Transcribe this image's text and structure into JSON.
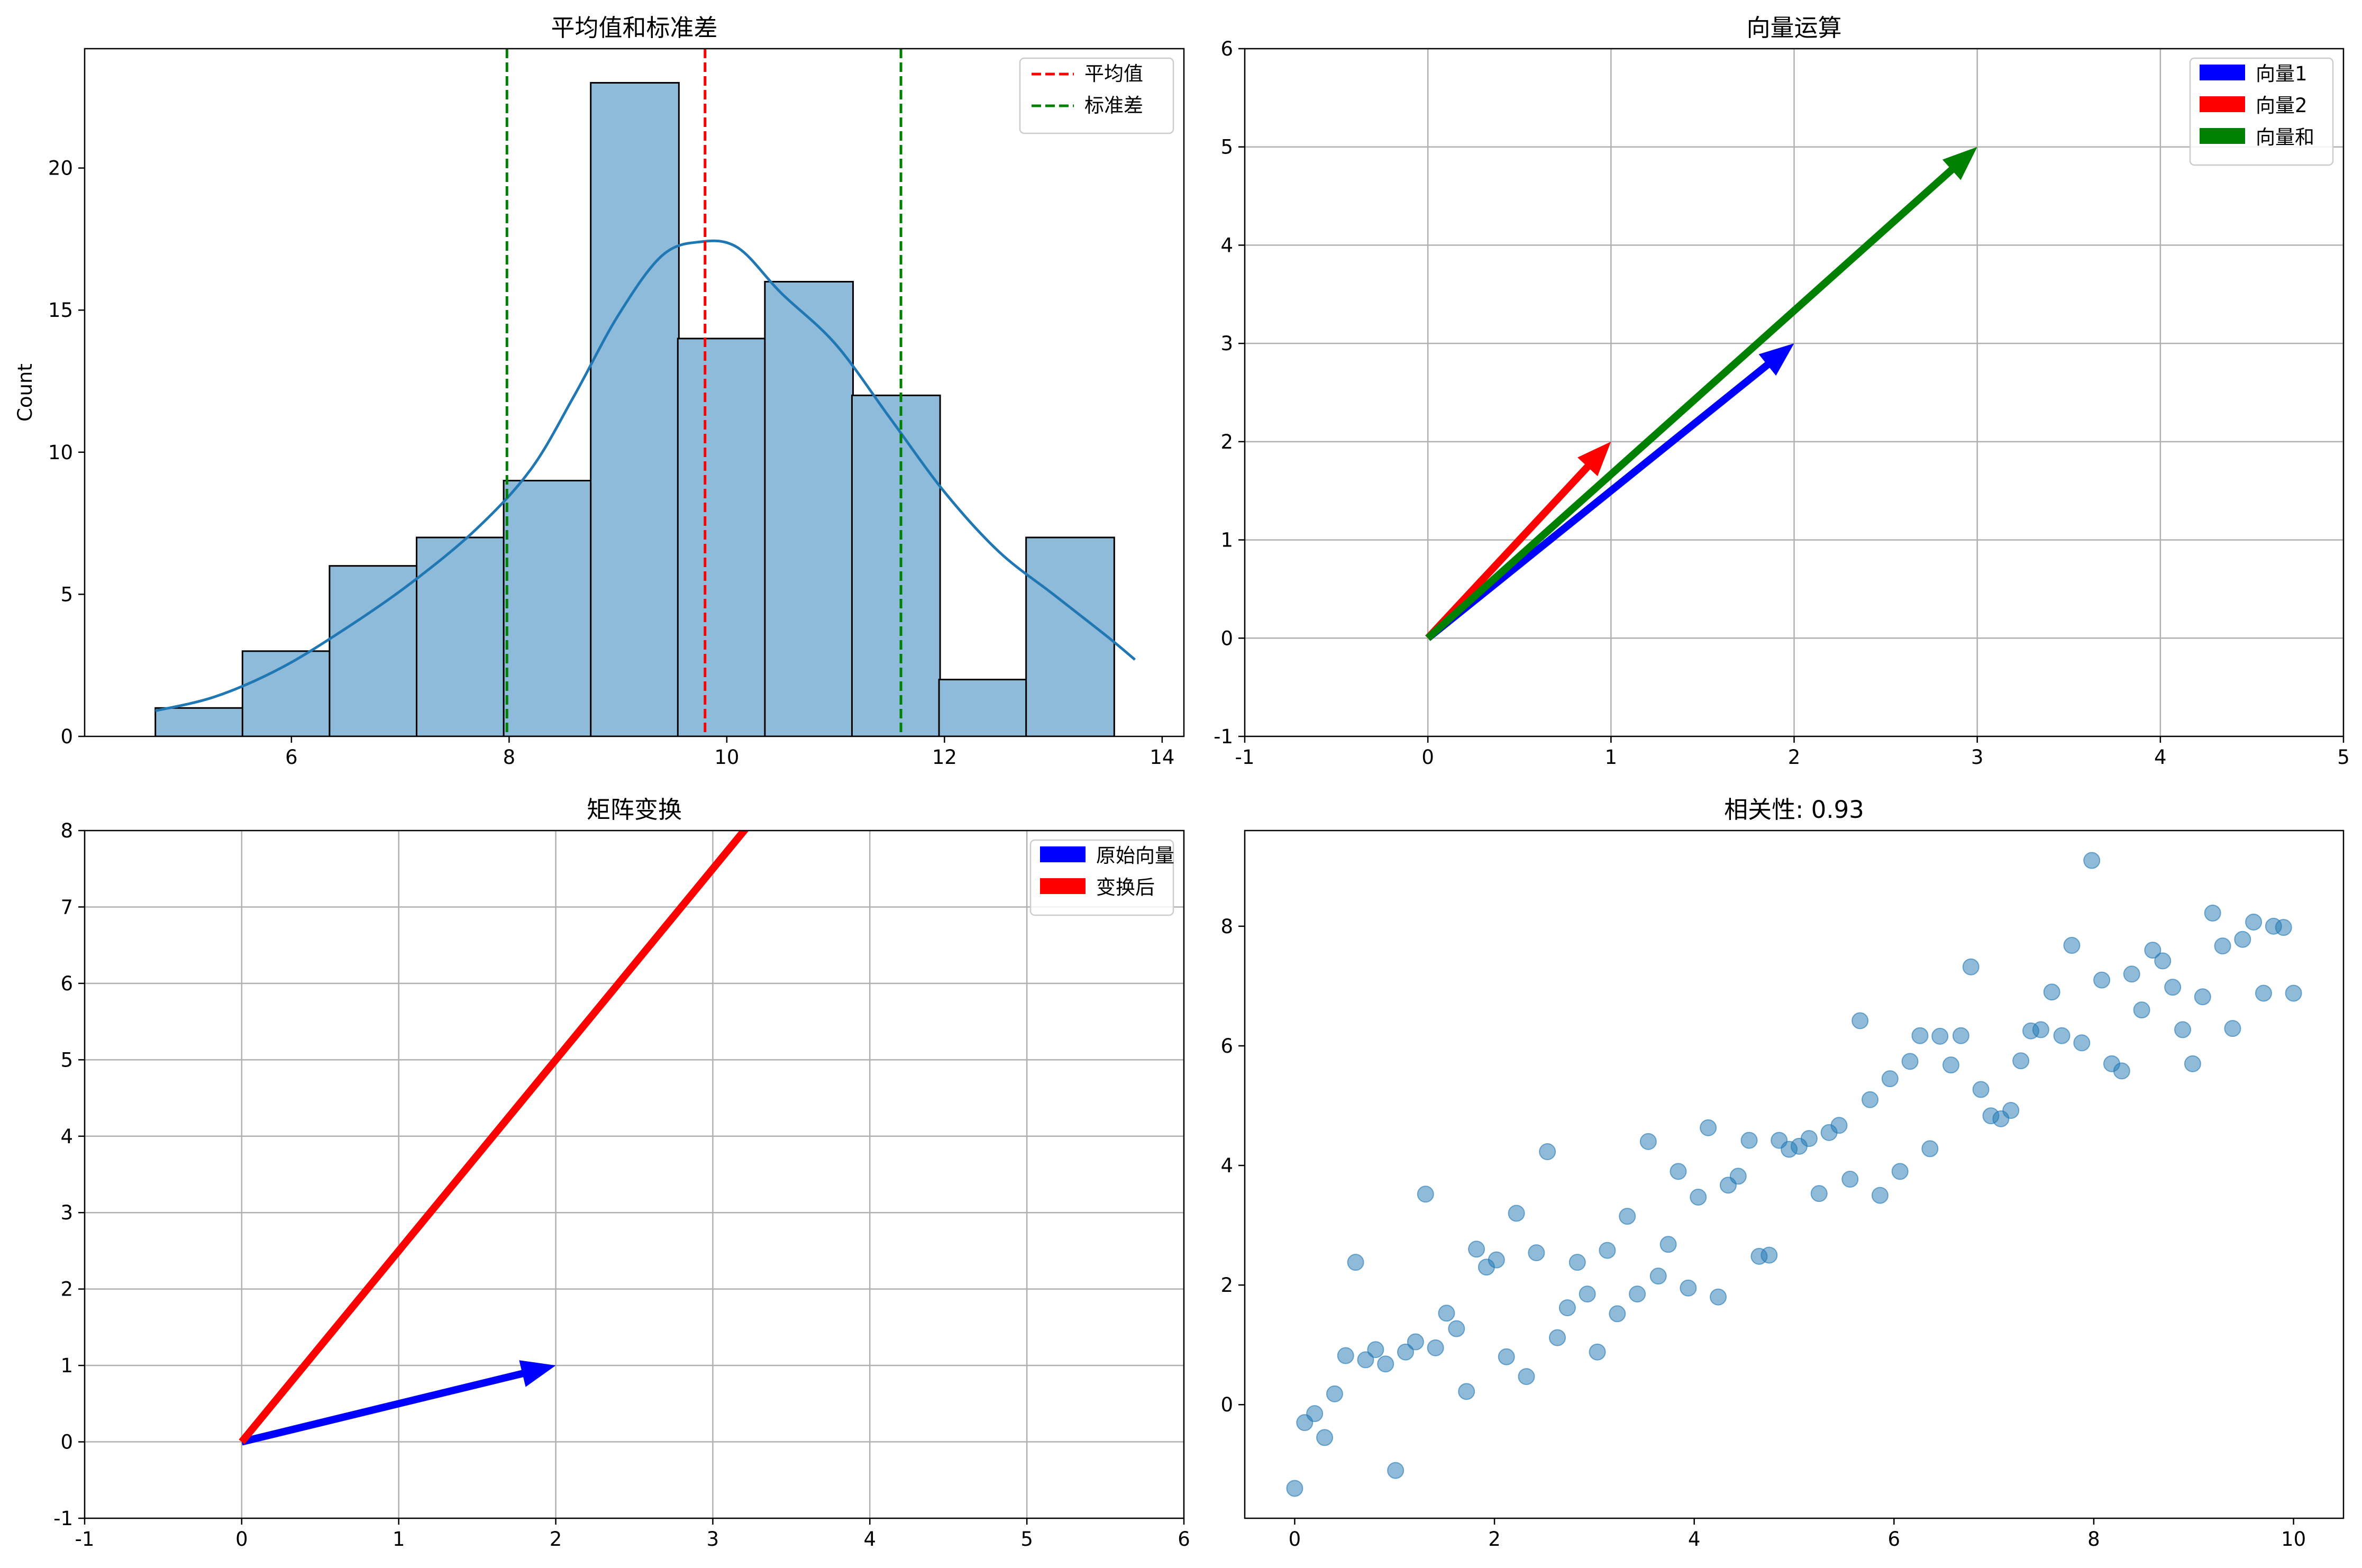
{
  "figure": {
    "background": "#ffffff"
  },
  "chart_data": [
    {
      "type": "bar",
      "title": "平均值和标准差",
      "xlabel": "",
      "ylabel": "Count",
      "xlim": [
        4.1,
        14.2
      ],
      "ylim": [
        0,
        24.2
      ],
      "xticks": [
        6,
        8,
        10,
        12,
        14
      ],
      "yticks": [
        0,
        5,
        10,
        15,
        20
      ],
      "grid": false,
      "bin_edges": [
        4.75,
        5.55,
        6.35,
        7.15,
        7.95,
        8.75,
        9.55,
        10.35,
        11.15,
        11.95,
        12.75,
        13.55
      ],
      "bin_width": 0.81,
      "counts": [
        1,
        3,
        6,
        7,
        9,
        23,
        14,
        16,
        12,
        2,
        7
      ],
      "bar_color": "#8fbbdb",
      "kde": {
        "color": "#1f77b4",
        "x": [
          4.75,
          5.3,
          5.9,
          6.5,
          7.1,
          7.7,
          8.2,
          8.6,
          9.0,
          9.4,
          9.75,
          10.1,
          10.5,
          11.0,
          11.5,
          12.0,
          12.5,
          13.0,
          13.5,
          13.75
        ],
        "y": [
          0.9,
          1.4,
          2.4,
          3.8,
          5.4,
          7.3,
          9.4,
          12.0,
          14.8,
          16.9,
          17.4,
          17.2,
          15.6,
          13.8,
          11.2,
          8.6,
          6.5,
          5.0,
          3.5,
          2.7
        ]
      },
      "vlines": [
        {
          "name": "平均值",
          "x": 9.8,
          "color": "#ff0000"
        },
        {
          "name": "标准差",
          "x": 7.98,
          "color": "#008000"
        },
        {
          "name": "标准差",
          "x": 11.6,
          "color": "#008000",
          "in_legend": false
        }
      ],
      "legend": {
        "placement": "top-right",
        "entries": [
          "平均值",
          "标准差"
        ]
      }
    },
    {
      "type": "vector",
      "title": "向量运算",
      "xlim": [
        -1,
        5
      ],
      "ylim": [
        -1,
        6
      ],
      "xticks": [
        -1,
        0,
        1,
        2,
        3,
        4,
        5
      ],
      "yticks": [
        -1,
        0,
        1,
        2,
        3,
        4,
        5,
        6
      ],
      "grid": true,
      "series": [
        {
          "name": "向量1",
          "origin": [
            0,
            0
          ],
          "vector": [
            2,
            3
          ],
          "color": "#0000ff"
        },
        {
          "name": "向量2",
          "origin": [
            0,
            0
          ],
          "vector": [
            1,
            2
          ],
          "color": "#ff0000"
        },
        {
          "name": "向量和",
          "origin": [
            0,
            0
          ],
          "vector": [
            3,
            5
          ],
          "color": "#008000"
        }
      ],
      "legend": {
        "placement": "top-right",
        "entries": [
          "向量1",
          "向量2",
          "向量和"
        ]
      }
    },
    {
      "type": "vector",
      "title": "矩阵变换",
      "xlim": [
        -1,
        6
      ],
      "ylim": [
        -1,
        8
      ],
      "xticks": [
        -1,
        0,
        1,
        2,
        3,
        4,
        5,
        6
      ],
      "yticks": [
        -1,
        0,
        1,
        2,
        3,
        4,
        5,
        6,
        7,
        8
      ],
      "grid": true,
      "series": [
        {
          "name": "原始向量",
          "origin": [
            0,
            0
          ],
          "vector": [
            2,
            1
          ],
          "color": "#0000ff"
        },
        {
          "name": "变换后",
          "origin": [
            0,
            0
          ],
          "vector": [
            4,
            10
          ],
          "color": "#ff0000"
        }
      ],
      "legend": {
        "placement": "top-right",
        "entries": [
          "原始向量",
          "变换后"
        ]
      }
    },
    {
      "type": "scatter",
      "title": "相关性: 0.93",
      "xlim": [
        -0.5,
        10.5
      ],
      "ylim": [
        -1.9,
        9.6
      ],
      "xticks": [
        0,
        2,
        4,
        6,
        8,
        10
      ],
      "yticks": [
        0,
        2,
        4,
        6,
        8
      ],
      "grid": false,
      "point_color": "#1f77b4",
      "x": [
        0.0,
        0.1,
        0.2,
        0.3,
        0.4,
        0.51,
        0.61,
        0.71,
        0.81,
        0.91,
        1.01,
        1.11,
        1.21,
        1.31,
        1.41,
        1.52,
        1.62,
        1.72,
        1.82,
        1.92,
        2.02,
        2.12,
        2.22,
        2.32,
        2.42,
        2.53,
        2.63,
        2.73,
        2.83,
        2.93,
        3.03,
        3.13,
        3.23,
        3.33,
        3.43,
        3.54,
        3.64,
        3.74,
        3.84,
        3.94,
        4.04,
        4.14,
        4.24,
        4.34,
        4.44,
        4.55,
        4.65,
        4.75,
        4.85,
        4.95,
        5.05,
        5.15,
        5.25,
        5.35,
        5.45,
        5.56,
        5.66,
        5.76,
        5.86,
        5.96,
        6.06,
        6.16,
        6.26,
        6.36,
        6.46,
        6.57,
        6.67,
        6.77,
        6.87,
        6.97,
        7.07,
        7.17,
        7.27,
        7.37,
        7.47,
        7.58,
        7.68,
        7.78,
        7.88,
        7.98,
        8.08,
        8.18,
        8.28,
        8.38,
        8.48,
        8.59,
        8.69,
        8.79,
        8.89,
        8.99,
        9.09,
        9.19,
        9.29,
        9.39,
        9.49,
        9.6,
        9.7,
        9.8,
        9.9,
        10.0
      ],
      "y": [
        -1.4,
        -0.3,
        -0.15,
        -0.55,
        0.18,
        0.82,
        2.38,
        0.75,
        0.92,
        0.68,
        -1.1,
        0.88,
        1.05,
        3.52,
        0.95,
        1.53,
        1.27,
        0.22,
        2.6,
        2.3,
        2.42,
        0.8,
        3.2,
        0.47,
        2.54,
        4.23,
        1.12,
        1.62,
        2.38,
        1.85,
        0.88,
        2.58,
        1.52,
        3.15,
        1.85,
        4.4,
        2.15,
        2.68,
        3.9,
        1.95,
        3.47,
        4.63,
        1.8,
        3.67,
        3.82,
        4.42,
        2.48,
        2.5,
        4.42,
        4.27,
        4.32,
        4.45,
        3.53,
        4.55,
        4.67,
        3.77,
        6.42,
        5.1,
        3.5,
        5.45,
        3.9,
        5.74,
        6.17,
        4.28,
        6.16,
        5.68,
        6.17,
        7.32,
        5.27,
        4.83,
        4.78,
        4.92,
        5.75,
        6.25,
        6.27,
        6.9,
        6.17,
        7.68,
        6.05,
        9.1,
        7.1,
        5.7,
        5.58,
        7.2,
        6.6,
        7.6,
        7.42,
        6.98,
        6.27,
        5.7,
        6.82,
        8.22,
        7.67,
        6.29,
        7.78,
        8.07,
        6.88,
        8.0,
        7.98,
        6.88
      ]
    }
  ]
}
